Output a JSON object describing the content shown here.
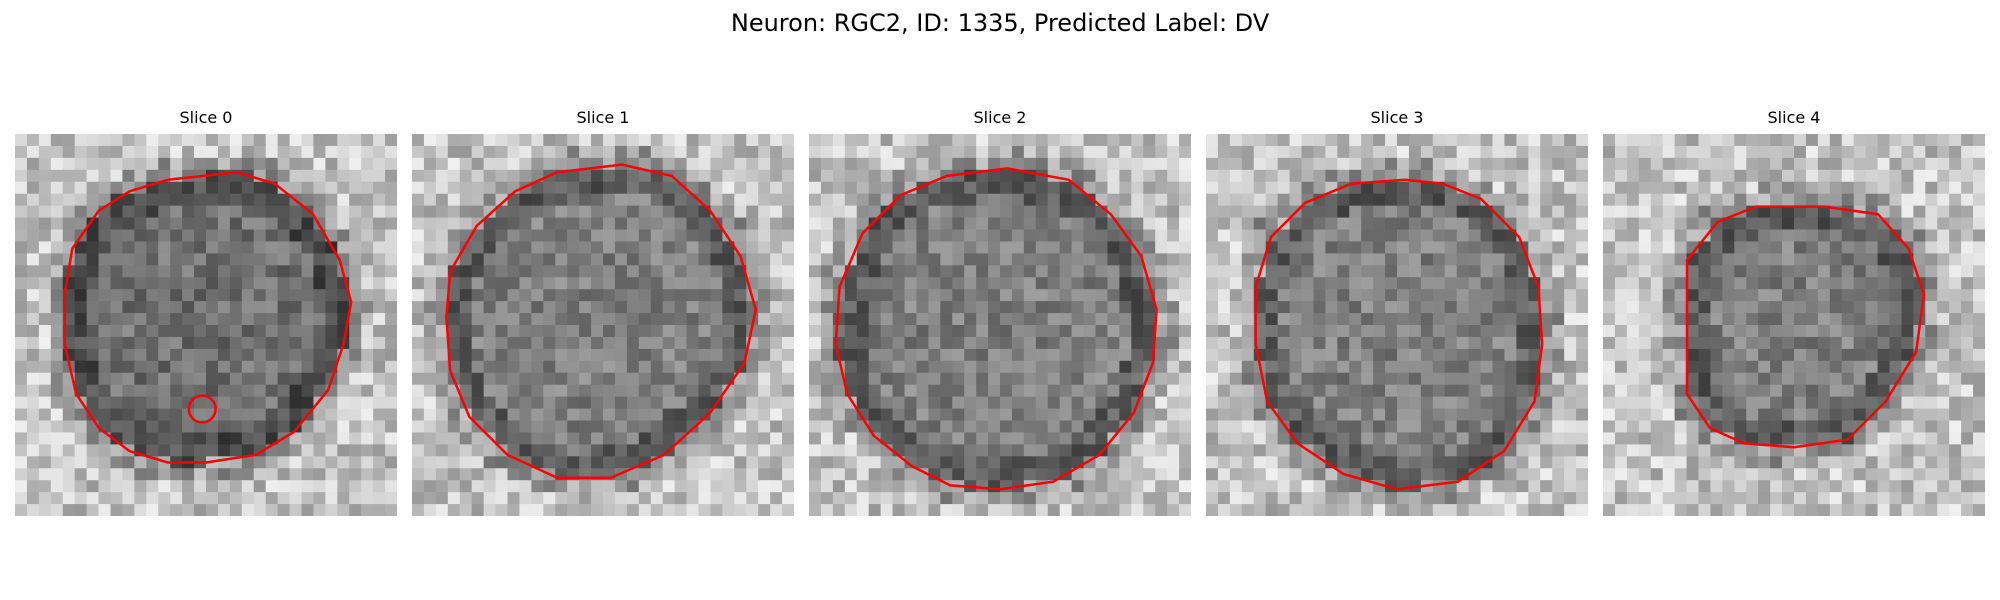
{
  "figure": {
    "title": "Neuron: RGC2, ID: 1335, Predicted Label: DV"
  },
  "slices": [
    {
      "title": "Slice 0",
      "outline": [
        [
          0.58,
          0.1
        ],
        [
          0.4,
          0.12
        ],
        [
          0.3,
          0.15
        ],
        [
          0.22,
          0.2
        ],
        [
          0.15,
          0.3
        ],
        [
          0.13,
          0.42
        ],
        [
          0.13,
          0.55
        ],
        [
          0.16,
          0.68
        ],
        [
          0.22,
          0.77
        ],
        [
          0.3,
          0.83
        ],
        [
          0.4,
          0.86
        ],
        [
          0.5,
          0.86
        ],
        [
          0.63,
          0.84
        ],
        [
          0.73,
          0.78
        ],
        [
          0.82,
          0.67
        ],
        [
          0.86,
          0.55
        ],
        [
          0.88,
          0.44
        ],
        [
          0.85,
          0.33
        ],
        [
          0.78,
          0.21
        ],
        [
          0.68,
          0.13
        ]
      ],
      "extra": [
        [
          0.49,
          0.72,
          0.035
        ]
      ]
    },
    {
      "title": "Slice 1",
      "outline": [
        [
          0.55,
          0.08
        ],
        [
          0.38,
          0.1
        ],
        [
          0.27,
          0.15
        ],
        [
          0.17,
          0.24
        ],
        [
          0.1,
          0.36
        ],
        [
          0.09,
          0.48
        ],
        [
          0.1,
          0.62
        ],
        [
          0.15,
          0.74
        ],
        [
          0.25,
          0.84
        ],
        [
          0.38,
          0.9
        ],
        [
          0.52,
          0.9
        ],
        [
          0.66,
          0.84
        ],
        [
          0.78,
          0.73
        ],
        [
          0.87,
          0.6
        ],
        [
          0.9,
          0.46
        ],
        [
          0.86,
          0.32
        ],
        [
          0.78,
          0.2
        ],
        [
          0.68,
          0.11
        ]
      ],
      "extra": []
    },
    {
      "title": "Slice 2",
      "outline": [
        [
          0.52,
          0.09
        ],
        [
          0.36,
          0.11
        ],
        [
          0.24,
          0.16
        ],
        [
          0.14,
          0.26
        ],
        [
          0.08,
          0.4
        ],
        [
          0.07,
          0.55
        ],
        [
          0.1,
          0.68
        ],
        [
          0.17,
          0.79
        ],
        [
          0.27,
          0.87
        ],
        [
          0.37,
          0.92
        ],
        [
          0.5,
          0.93
        ],
        [
          0.64,
          0.91
        ],
        [
          0.76,
          0.84
        ],
        [
          0.85,
          0.73
        ],
        [
          0.9,
          0.6
        ],
        [
          0.91,
          0.46
        ],
        [
          0.87,
          0.32
        ],
        [
          0.79,
          0.21
        ],
        [
          0.68,
          0.12
        ]
      ],
      "extra": []
    },
    {
      "title": "Slice 3",
      "outline": [
        [
          0.52,
          0.12
        ],
        [
          0.38,
          0.13
        ],
        [
          0.26,
          0.18
        ],
        [
          0.17,
          0.27
        ],
        [
          0.13,
          0.4
        ],
        [
          0.13,
          0.55
        ],
        [
          0.16,
          0.7
        ],
        [
          0.24,
          0.81
        ],
        [
          0.36,
          0.89
        ],
        [
          0.5,
          0.93
        ],
        [
          0.66,
          0.91
        ],
        [
          0.78,
          0.83
        ],
        [
          0.86,
          0.7
        ],
        [
          0.88,
          0.55
        ],
        [
          0.87,
          0.4
        ],
        [
          0.82,
          0.27
        ],
        [
          0.72,
          0.17
        ],
        [
          0.62,
          0.13
        ]
      ],
      "extra": []
    },
    {
      "title": "Slice 4",
      "outline": [
        [
          0.58,
          0.19
        ],
        [
          0.4,
          0.19
        ],
        [
          0.3,
          0.23
        ],
        [
          0.22,
          0.33
        ],
        [
          0.22,
          0.47
        ],
        [
          0.22,
          0.68
        ],
        [
          0.28,
          0.77
        ],
        [
          0.37,
          0.81
        ],
        [
          0.5,
          0.82
        ],
        [
          0.64,
          0.8
        ],
        [
          0.74,
          0.7
        ],
        [
          0.82,
          0.57
        ],
        [
          0.84,
          0.42
        ],
        [
          0.8,
          0.3
        ],
        [
          0.72,
          0.21
        ]
      ],
      "extra": []
    }
  ],
  "colors": {
    "outline": "#ff0000",
    "background": "#ffffff"
  }
}
